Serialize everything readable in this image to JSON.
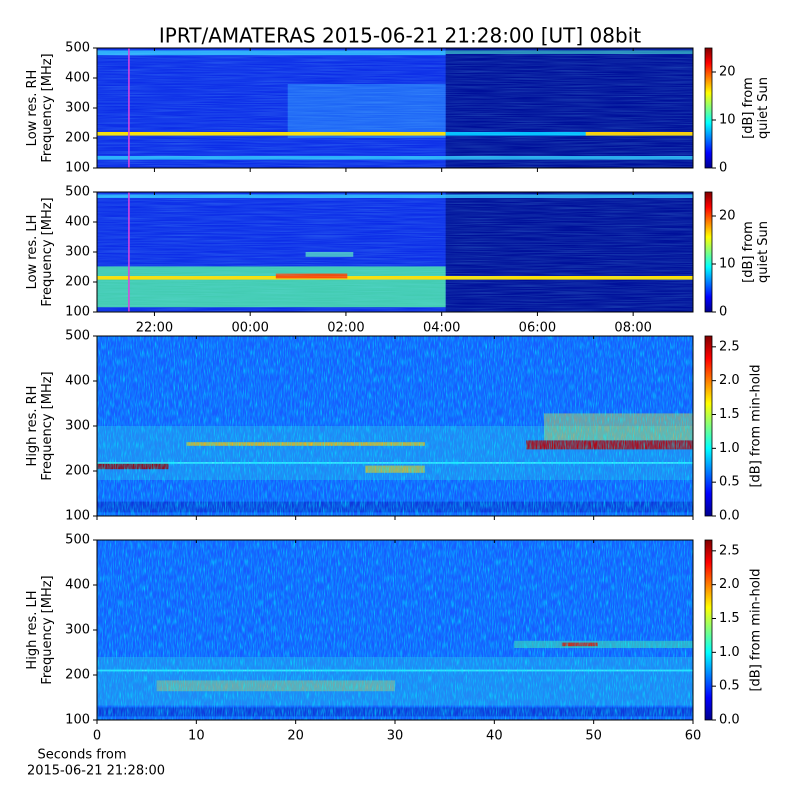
{
  "chart_data": [
    {
      "type": "spectrogram",
      "title": "IPRT/AMATERAS 2015-06-21 21:28:00 [UT]   08bit",
      "ylabel": [
        "Low res. RH",
        "Frequency [MHz]"
      ],
      "ylim": [
        100,
        500
      ],
      "yticks": [
        100,
        200,
        300,
        400,
        500
      ],
      "xlim": [
        20.8,
        33.25
      ],
      "xticks": [
        22,
        24,
        26,
        28,
        30,
        32
      ],
      "marker_x": 21.467,
      "marker_color": "#e040e0",
      "colorbar_label": [
        "[dB] from",
        "quiet Sun"
      ],
      "clim": [
        0,
        25
      ],
      "cticks": [
        0,
        10,
        20
      ]
    },
    {
      "type": "spectrogram",
      "ylabel": [
        "Low res. LH",
        "Frequency [MHz]"
      ],
      "ylim": [
        100,
        500
      ],
      "yticks": [
        100,
        200,
        300,
        400,
        500
      ],
      "xlim": [
        20.8,
        33.25
      ],
      "xticks": [
        {
          "value": 22,
          "label": "22:00"
        },
        {
          "value": 24,
          "label": "00:00"
        },
        {
          "value": 26,
          "label": "02:00"
        },
        {
          "value": 28,
          "label": "04:00"
        },
        {
          "value": 30,
          "label": "06:00"
        },
        {
          "value": 32,
          "label": "08:00"
        }
      ],
      "xticklabels": true,
      "marker_x": 21.467,
      "marker_color": "#e040e0",
      "colorbar_label": [
        "[dB] from",
        "quiet Sun"
      ],
      "clim": [
        0,
        25
      ],
      "cticks": [
        0,
        10,
        20
      ]
    },
    {
      "type": "spectrogram",
      "ylabel": [
        "High res. RH",
        "Frequency [MHz]"
      ],
      "ylim": [
        100,
        500
      ],
      "yticks": [
        100,
        200,
        300,
        400,
        500
      ],
      "xlim": [
        0,
        60
      ],
      "xticks": [
        0,
        10,
        20,
        30,
        40,
        50,
        60
      ],
      "colorbar_label": [
        "[dB] from min-hold"
      ],
      "clim": [
        0,
        2.66
      ],
      "cticks": [
        {
          "value": 0,
          "label": "0.0"
        },
        {
          "value": 0.5,
          "label": "0.5"
        },
        {
          "value": 1,
          "label": "1.0"
        },
        {
          "value": 1.5,
          "label": "1.5"
        },
        {
          "value": 2,
          "label": "2.0"
        },
        {
          "value": 2.5,
          "label": "2.5"
        }
      ]
    },
    {
      "type": "spectrogram",
      "ylabel": [
        "High res. LH",
        "Frequency [MHz]"
      ],
      "ylim": [
        100,
        500
      ],
      "yticks": [
        100,
        200,
        300,
        400,
        500
      ],
      "xlim": [
        0,
        60
      ],
      "xticks": [
        0,
        10,
        20,
        30,
        40,
        50,
        60
      ],
      "xticklabels": true,
      "xlabel": [
        "Seconds from",
        "2015-06-21 21:28:00"
      ],
      "colorbar_label": [
        "[dB] from min-hold"
      ],
      "clim": [
        0,
        2.66
      ],
      "cticks": [
        {
          "value": 0,
          "label": "0.0"
        },
        {
          "value": 0.5,
          "label": "0.5"
        },
        {
          "value": 1,
          "label": "1.0"
        },
        {
          "value": 1.5,
          "label": "1.5"
        },
        {
          "value": 2,
          "label": "2.0"
        },
        {
          "value": 2.5,
          "label": "2.5"
        }
      ]
    }
  ]
}
